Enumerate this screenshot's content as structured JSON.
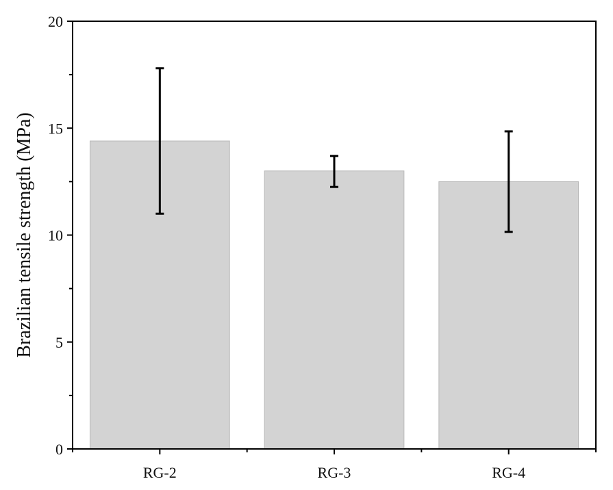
{
  "chart_data": {
    "type": "bar",
    "title": "",
    "xlabel": "",
    "ylabel": "Brazilian tensile strength (MPa)",
    "categories": [
      "RG-2",
      "RG-3",
      "RG-4"
    ],
    "values": [
      14.4,
      13.0,
      12.5
    ],
    "error_low": [
      11.0,
      12.25,
      10.15
    ],
    "error_high": [
      17.8,
      13.7,
      14.85
    ],
    "ylim": [
      0,
      20
    ],
    "yticks": [
      0,
      5,
      10,
      15,
      20
    ],
    "ytick_labels": [
      "0",
      "5",
      "10",
      "15",
      "20"
    ],
    "grid": false,
    "legend": "none",
    "colors": {
      "bar_fill": "#d3d3d3",
      "bar_stroke": "#b8b8b8",
      "axis": "#000000",
      "error_bar": "#000000"
    }
  }
}
